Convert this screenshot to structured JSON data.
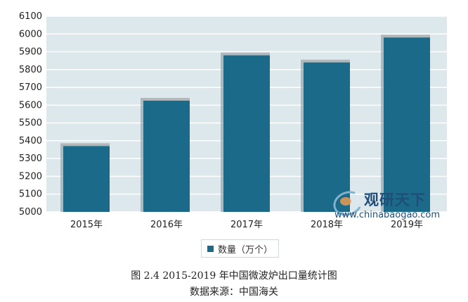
{
  "chart_data": {
    "type": "bar",
    "categories": [
      "2015年",
      "2016年",
      "2017年",
      "2018年",
      "2019年"
    ],
    "series": [
      {
        "name": "数量（万个）",
        "values": [
          5370,
          5625,
          5880,
          5840,
          5980
        ]
      }
    ],
    "ylim": [
      5000,
      6100
    ],
    "yticks": [
      5000,
      5100,
      5200,
      5300,
      5400,
      5500,
      5600,
      5700,
      5800,
      5900,
      6000,
      6100
    ],
    "grid": true,
    "legend_position": "bottom",
    "colors": {
      "bar": "#1b6a8a",
      "bar_shadow": "#8a8f93",
      "plot_background": "#dde8ec",
      "grid_line": "#ffffff",
      "axis_text": "#222222"
    }
  },
  "legend": {
    "label": "数量（万个）"
  },
  "watermark": {
    "title": "观研天下",
    "url": "www.chinabaogao.com"
  },
  "caption": {
    "line1": "图 2.4 2015-2019 年中国微波炉出口量统计图",
    "line2": "数据来源：中国海关"
  }
}
